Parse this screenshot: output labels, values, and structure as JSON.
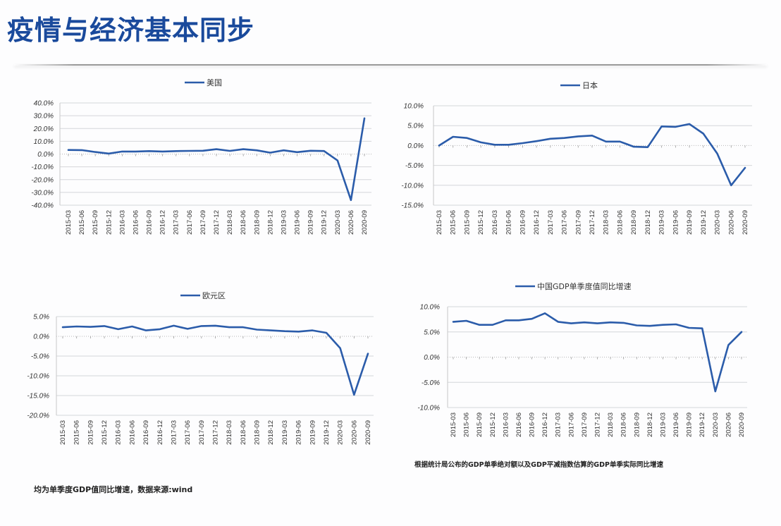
{
  "page": {
    "title": "疫情与经济基本同步",
    "footnote_left": "均为单季度GDP值同比增速，数据来源:wind",
    "footnote_right": "根据统计局公布的GDP单季绝对额以及GDP平减指数估算的GDP单季实际同比增速"
  },
  "colors": {
    "title": "#1a4a9c",
    "series": "#2b5caa",
    "grid": "#d4d6da"
  },
  "chart_data": [
    {
      "id": "us",
      "type": "line",
      "title": "",
      "legend": [
        "美国"
      ],
      "legend_position": "top",
      "xlabel": "",
      "ylabel": "",
      "ylim": [
        -40,
        40
      ],
      "yticks": [
        "40.0%",
        "30.0%",
        "20.0%",
        "10.0%",
        "0.0%",
        "-10.0%",
        "-20.0%",
        "-30.0%",
        "-40.0%"
      ],
      "grid": true,
      "categories": [
        "2015-03",
        "2015-06",
        "2015-09",
        "2015-12",
        "2016-03",
        "2016-06",
        "2016-09",
        "2016-12",
        "2017-03",
        "2017-06",
        "2017-09",
        "2017-12",
        "2018-03",
        "2018-06",
        "2018-09",
        "2018-12",
        "2019-03",
        "2019-06",
        "2019-09",
        "2019-12",
        "2020-03",
        "2020-06",
        "2020-09"
      ],
      "series": [
        {
          "name": "美国",
          "values": [
            3.2,
            3.1,
            1.6,
            0.4,
            2.0,
            2.0,
            2.3,
            2.0,
            2.3,
            2.5,
            2.6,
            3.8,
            2.5,
            3.8,
            2.9,
            1.1,
            2.9,
            1.5,
            2.6,
            2.4,
            -5.0,
            -36.0,
            28.0
          ]
        }
      ]
    },
    {
      "id": "japan",
      "type": "line",
      "title": "",
      "legend": [
        "日本"
      ],
      "legend_position": "top",
      "xlabel": "",
      "ylabel": "",
      "ylim": [
        -15,
        10
      ],
      "yticks": [
        "10.0%",
        "5.0%",
        "0.0%",
        "-5.0%",
        "-10.0%",
        "-15.0%"
      ],
      "grid": true,
      "categories": [
        "2015-03",
        "2015-06",
        "2015-09",
        "2015-12",
        "2016-03",
        "2016-06",
        "2016-09",
        "2016-12",
        "2017-03",
        "2017-06",
        "2017-09",
        "2017-12",
        "2018-03",
        "2018-06",
        "2018-09",
        "2018-12",
        "2019-03",
        "2019-06",
        "2019-09",
        "2019-12",
        "2020-03",
        "2020-06",
        "2020-09"
      ],
      "series": [
        {
          "name": "日本",
          "values": [
            0.0,
            2.2,
            1.9,
            0.8,
            0.2,
            0.2,
            0.6,
            1.1,
            1.7,
            1.9,
            2.3,
            2.5,
            1.0,
            1.0,
            -0.3,
            -0.4,
            4.8,
            4.7,
            5.4,
            3.0,
            -2.0,
            -10.0,
            -5.6
          ]
        }
      ]
    },
    {
      "id": "eurozone",
      "type": "line",
      "title": "",
      "legend": [
        "欧元区"
      ],
      "legend_position": "top",
      "xlabel": "",
      "ylabel": "",
      "ylim": [
        -20,
        5
      ],
      "yticks": [
        "5.0%",
        "0.0%",
        "-5.0%",
        "-10.0%",
        "-15.0%",
        "-20.0%"
      ],
      "grid": true,
      "categories": [
        "2015-03",
        "2015-06",
        "2015-09",
        "2015-12",
        "2016-03",
        "2016-06",
        "2016-09",
        "2016-12",
        "2017-03",
        "2017-06",
        "2017-09",
        "2017-12",
        "2018-03",
        "2018-06",
        "2018-09",
        "2018-12",
        "2019-03",
        "2019-06",
        "2019-09",
        "2019-12",
        "2020-03",
        "2020-06",
        "2020-09"
      ],
      "series": [
        {
          "name": "欧元区",
          "values": [
            2.3,
            2.5,
            2.4,
            2.6,
            1.8,
            2.5,
            1.5,
            1.8,
            2.7,
            1.9,
            2.6,
            2.7,
            2.3,
            2.3,
            1.7,
            1.5,
            1.3,
            1.2,
            1.5,
            0.9,
            -3.0,
            -14.8,
            -4.4
          ]
        }
      ]
    },
    {
      "id": "china",
      "type": "line",
      "title": "",
      "legend": [
        "中国GDP单季度值同比增速"
      ],
      "legend_position": "top",
      "xlabel": "",
      "ylabel": "",
      "ylim": [
        -10,
        10
      ],
      "yticks": [
        "10.0%",
        "5.0%",
        "0.0%",
        "-5.0%",
        "-10.0%"
      ],
      "grid": true,
      "categories": [
        "2015-03",
        "2015-06",
        "2015-09",
        "2015-12",
        "2016-03",
        "2016-06",
        "2016-09",
        "2016-12",
        "2017-03",
        "2017-06",
        "2017-09",
        "2017-12",
        "2018-03",
        "2018-06",
        "2018-09",
        "2018-12",
        "2019-03",
        "2019-06",
        "2019-09",
        "2019-12",
        "2020-03",
        "2020-06",
        "2020-09"
      ],
      "series": [
        {
          "name": "中国GDP单季度值同比增速",
          "values": [
            7.0,
            7.2,
            6.4,
            6.4,
            7.3,
            7.3,
            7.6,
            8.7,
            7.0,
            6.7,
            6.9,
            6.7,
            6.9,
            6.8,
            6.3,
            6.2,
            6.4,
            6.5,
            5.8,
            5.7,
            -6.8,
            2.4,
            5.0
          ]
        }
      ]
    }
  ]
}
